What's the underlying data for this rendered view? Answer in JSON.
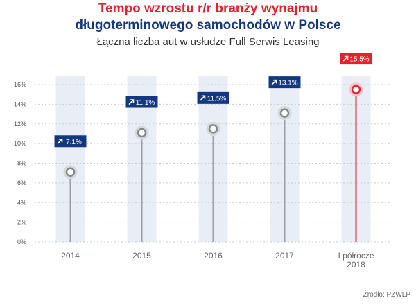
{
  "title_line1": "Tempo wzrostu r/r branży wynajmu",
  "title_line2": "długoterminowego samochodów w Polsce",
  "subtitle": "Łączna liczba aut w usłudze Full Serwis Leasing",
  "source": "Źródło: PZWLP",
  "colors": {
    "title_red": "#e4222e",
    "title_blue": "#14387f",
    "band": "#e9eef6",
    "stem": "#9aa0a6",
    "stem_highlight": "#e4222e",
    "label_bg": "#14387f",
    "label_bg_highlight": "#e4222e",
    "grid": "#c7ccd3"
  },
  "chart_data": {
    "type": "lollipop",
    "categories": [
      "2014",
      "2015",
      "2016",
      "2017",
      "I półrocze 2018"
    ],
    "category_lines": [
      [
        "2014"
      ],
      [
        "2015"
      ],
      [
        "2016"
      ],
      [
        "2017"
      ],
      [
        "I półrocze",
        "2018"
      ]
    ],
    "values": [
      7.1,
      11.1,
      11.5,
      13.1,
      15.5
    ],
    "value_labels": [
      "7.1%",
      "11.1%",
      "11.5%",
      "13.1%",
      "15.5%"
    ],
    "highlight_index": 4,
    "y_ticks": [
      "0%",
      "2%",
      "4%",
      "6%",
      "8%",
      "10%",
      "12%",
      "14%",
      "16%"
    ],
    "ylim": [
      0,
      16
    ],
    "grid": true,
    "label_icon": "arrow-up-right-icon"
  }
}
